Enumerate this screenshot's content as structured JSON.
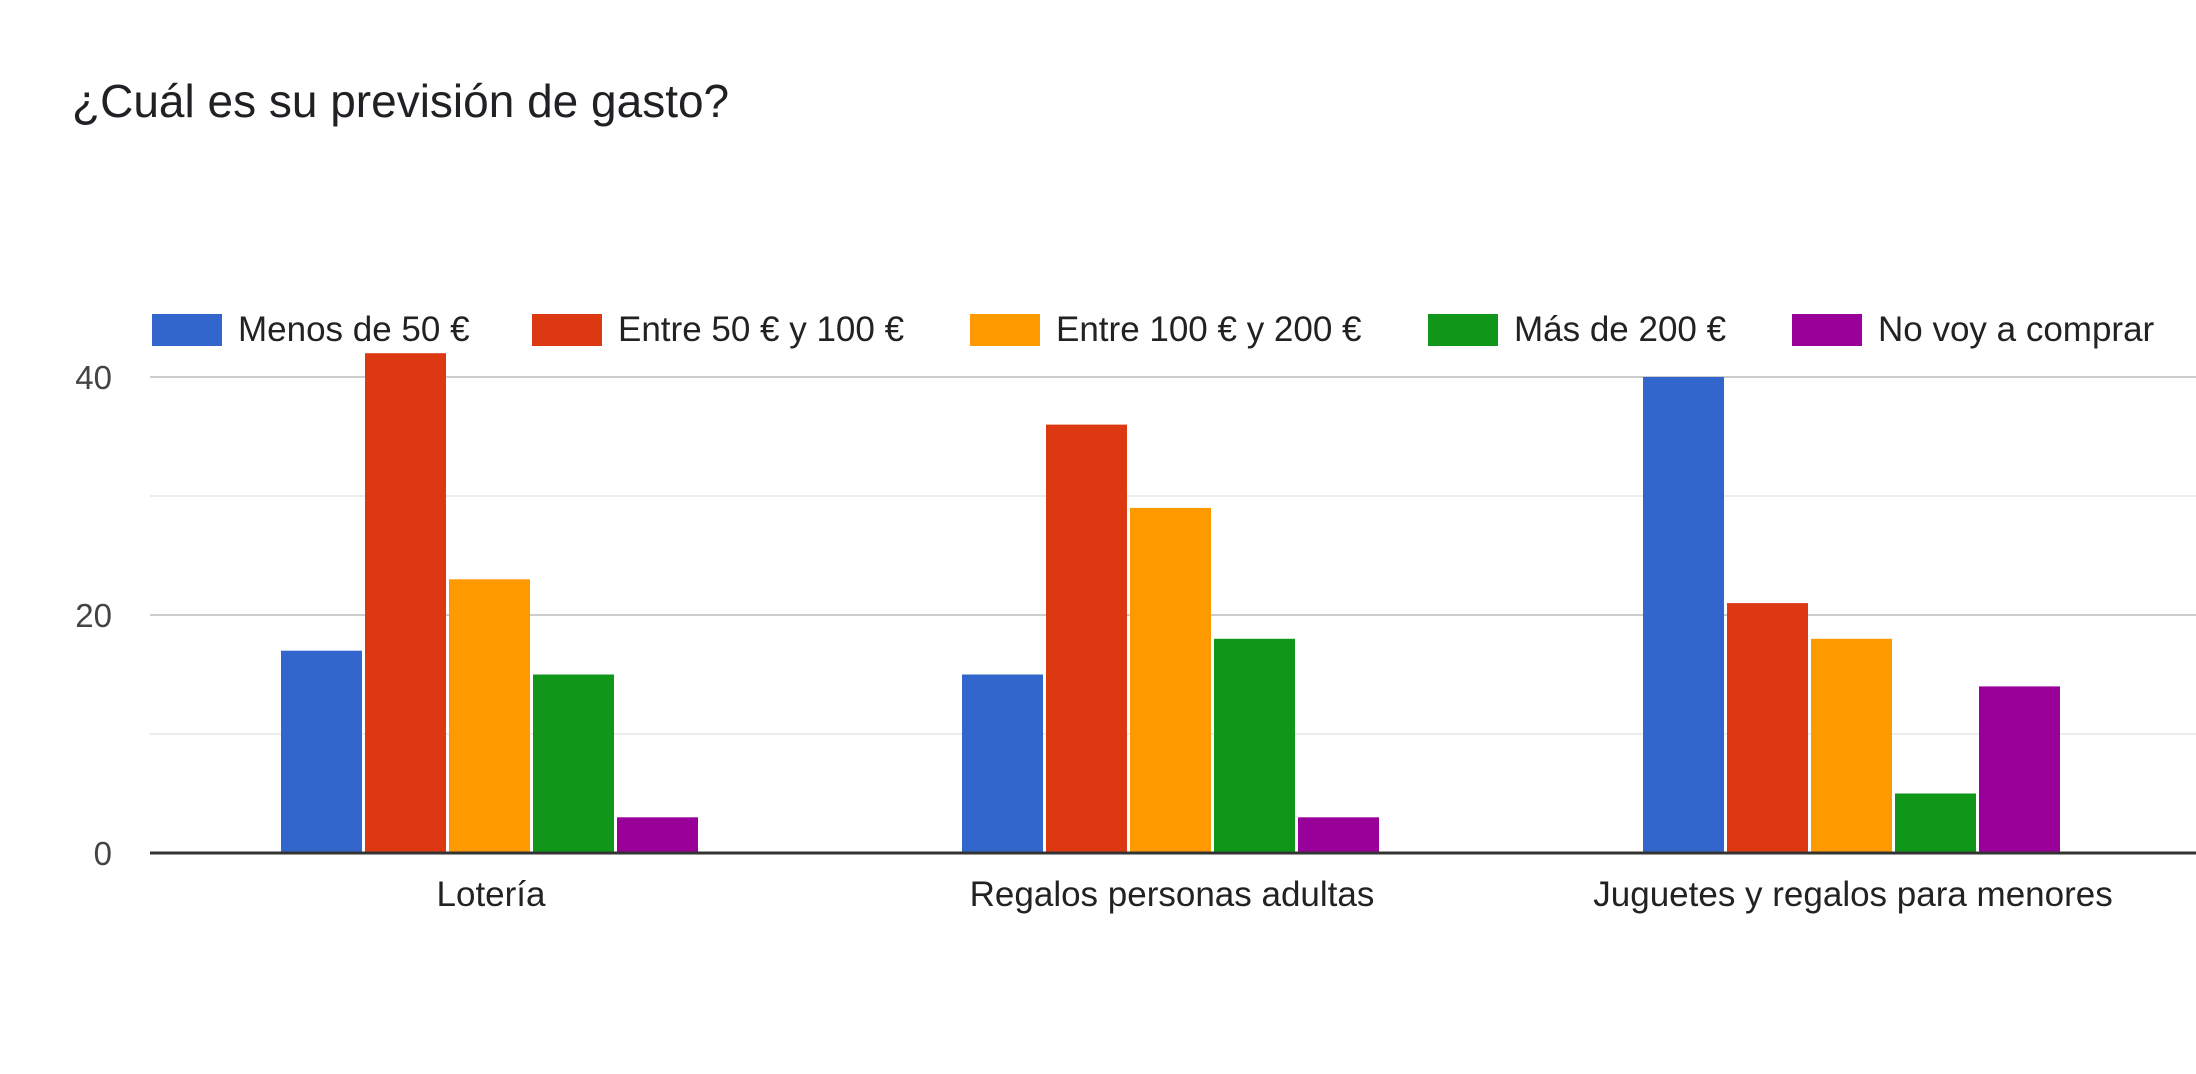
{
  "chart_data": {
    "type": "bar",
    "title": "¿Cuál es su previsión de gasto?",
    "categories": [
      "Lotería",
      "Regalos personas adultas",
      "Juguetes y regalos para menores"
    ],
    "series": [
      {
        "name": "Menos de 50 €",
        "color": "#3366cc",
        "values": [
          17,
          15,
          40
        ]
      },
      {
        "name": "Entre 50 € y 100 €",
        "color": "#dc3912",
        "values": [
          42,
          36,
          21
        ]
      },
      {
        "name": "Entre 100 € y 200 €",
        "color": "#ff9900",
        "values": [
          23,
          29,
          18
        ]
      },
      {
        "name": "Más de 200 €",
        "color": "#109618",
        "values": [
          15,
          18,
          5
        ]
      },
      {
        "name": "No voy a comprar",
        "color": "#990099",
        "values": [
          3,
          3,
          14
        ]
      }
    ],
    "yticks": [
      0,
      20,
      40
    ],
    "ylim": [
      0,
      40
    ],
    "grid": true,
    "legend_position": "top"
  }
}
